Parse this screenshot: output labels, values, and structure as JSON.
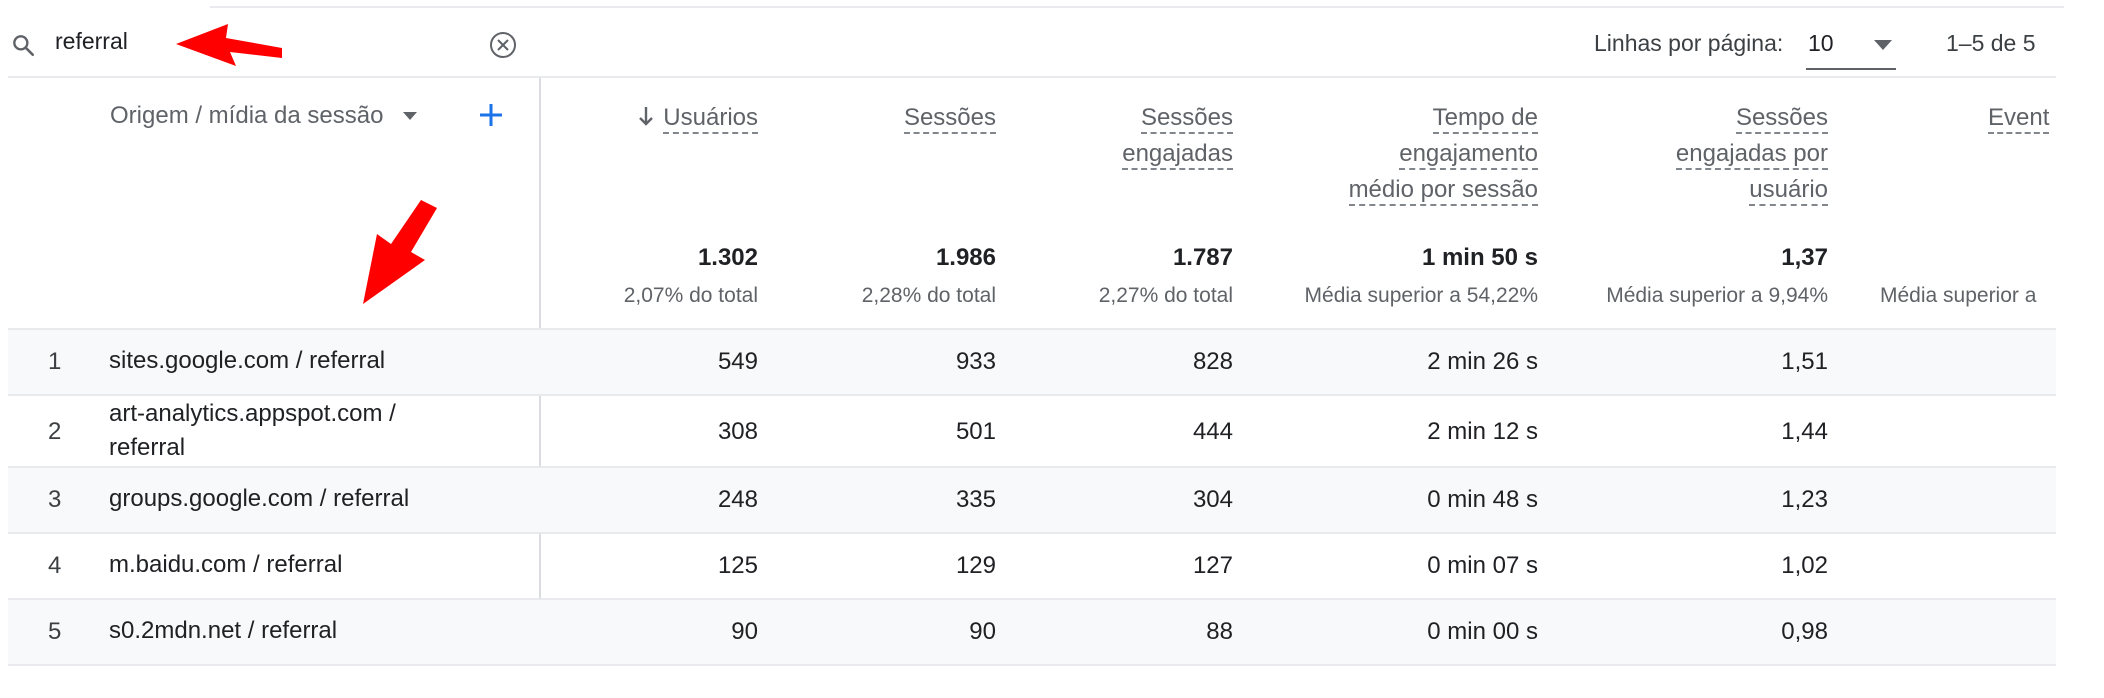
{
  "search": {
    "value": "referral"
  },
  "pagination": {
    "rows_label": "Linhas por página:",
    "rows_value": "10",
    "range": "1–5 de 5"
  },
  "dimension": {
    "label": "Origem / mídia da sessão"
  },
  "columns": [
    {
      "lines": [
        "Usuários"
      ],
      "total": "1.302",
      "sub": "2,07% do total",
      "sorted": true
    },
    {
      "lines": [
        "Sessões"
      ],
      "total": "1.986",
      "sub": "2,28% do total",
      "sorted": false
    },
    {
      "lines": [
        "Sessões",
        "engajadas"
      ],
      "total": "1.787",
      "sub": "2,27% do total",
      "sorted": false
    },
    {
      "lines": [
        "Tempo de",
        "engajamento",
        "médio por sessão"
      ],
      "total": "1 min 50 s",
      "sub": "Média superior a 54,22%",
      "sorted": false
    },
    {
      "lines": [
        "Sessões",
        "engajadas por",
        "usuário"
      ],
      "total": "1,37",
      "sub": "Média superior a 9,94%",
      "sorted": false
    },
    {
      "lines": [
        "Event",
        "s"
      ],
      "total": "",
      "sub": "Média superior a",
      "sorted": false
    }
  ],
  "rows": [
    {
      "index": "1",
      "dimension": [
        "sites.google.com / referral"
      ],
      "values": [
        "549",
        "933",
        "828",
        "2 min 26 s",
        "1,51"
      ]
    },
    {
      "index": "2",
      "dimension": [
        "art-analytics.appspot.com /",
        "referral"
      ],
      "values": [
        "308",
        "501",
        "444",
        "2 min 12 s",
        "1,44"
      ]
    },
    {
      "index": "3",
      "dimension": [
        "groups.google.com / referral"
      ],
      "values": [
        "248",
        "335",
        "304",
        "0 min 48 s",
        "1,23"
      ]
    },
    {
      "index": "4",
      "dimension": [
        "m.baidu.com / referral"
      ],
      "values": [
        "125",
        "129",
        "127",
        "0 min 07 s",
        "1,02"
      ]
    },
    {
      "index": "5",
      "dimension": [
        "s0.2mdn.net / referral"
      ],
      "values": [
        "90",
        "90",
        "88",
        "0 min 00 s",
        "0,98"
      ]
    }
  ],
  "colors": {
    "annotation_arrow": "#ff0000",
    "add_button": "#1a73e8",
    "text_secondary": "#5f6368"
  }
}
